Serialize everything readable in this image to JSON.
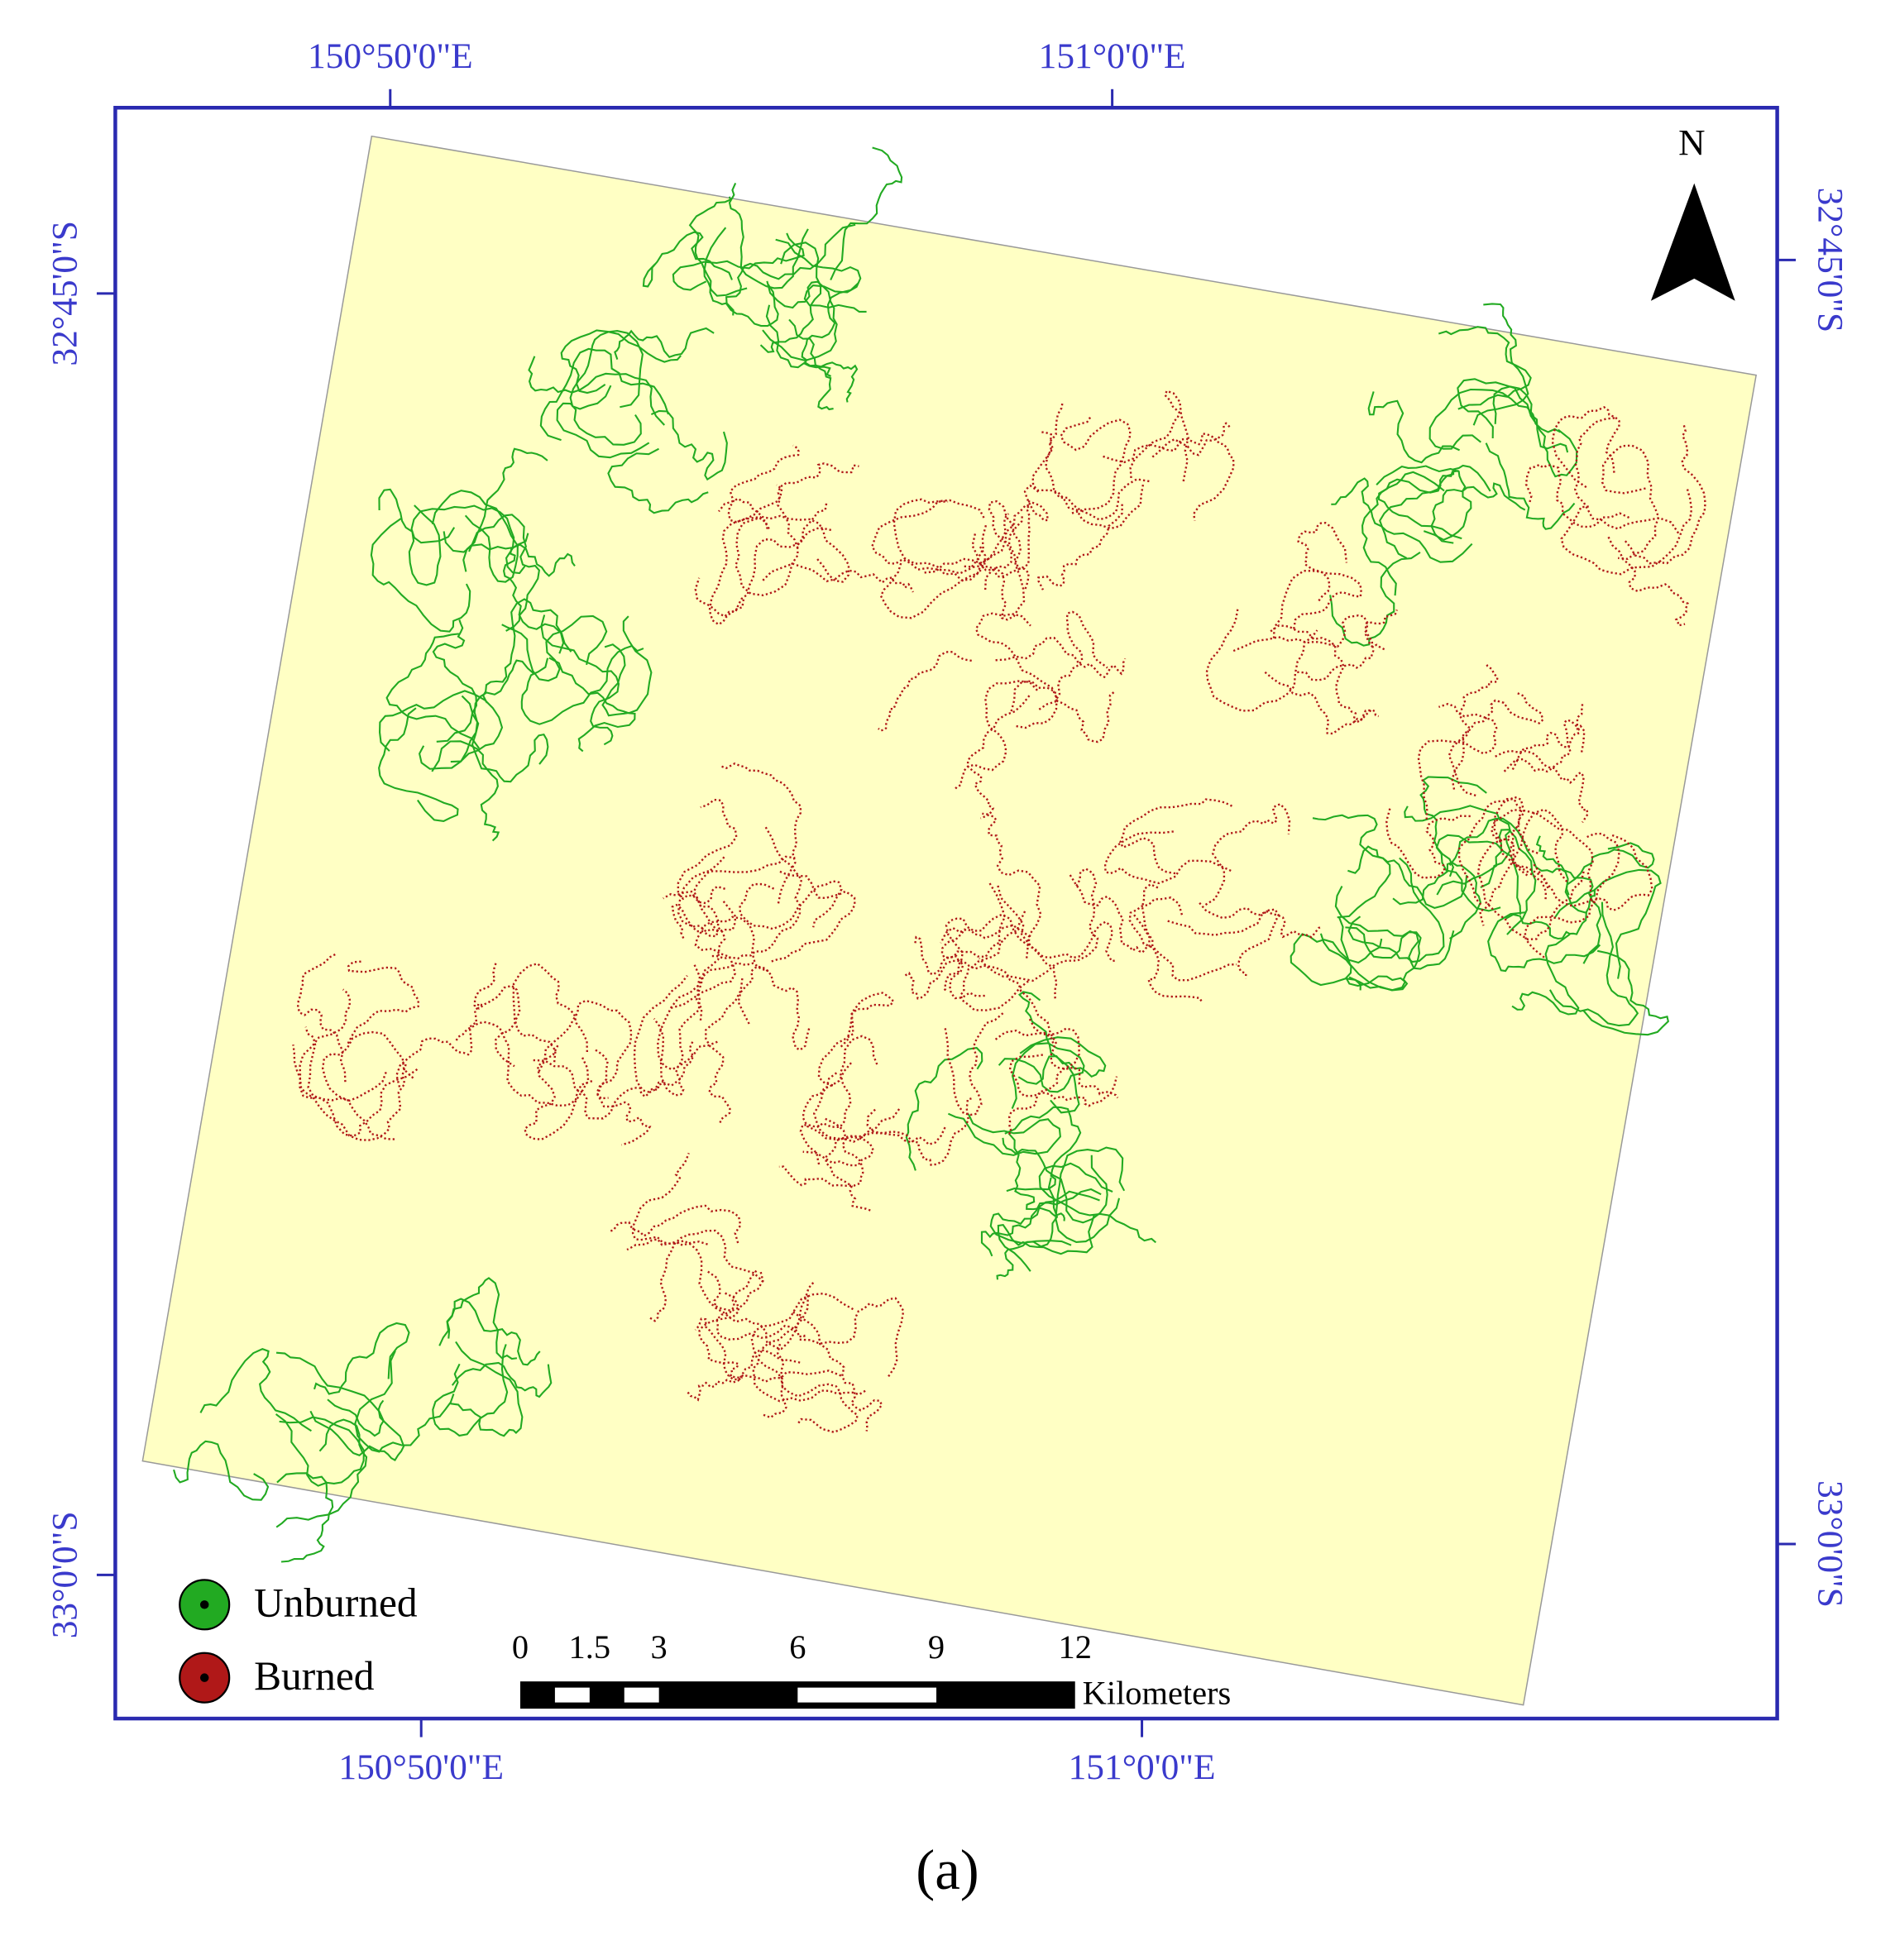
{
  "map": {
    "top_labels": [
      "150°50'0\"E",
      "151°0'0\"E"
    ],
    "bottom_labels": [
      "150°50'0\"E",
      "151°0'0\"E"
    ],
    "left_labels": [
      "32°45'0\"S",
      "33°0'0\"S"
    ],
    "right_labels": [
      "32°45'0\"S",
      "33°0'0\"S"
    ],
    "north": "N",
    "legend": [
      {
        "label": "Unburned",
        "color": "#22aa22"
      },
      {
        "label": "Burned",
        "color": "#b01818"
      }
    ],
    "scale_bar": {
      "ticks": [
        0,
        1.5,
        3,
        6,
        9,
        12
      ],
      "unit": "Kilometers"
    }
  },
  "caption": "(a)"
}
